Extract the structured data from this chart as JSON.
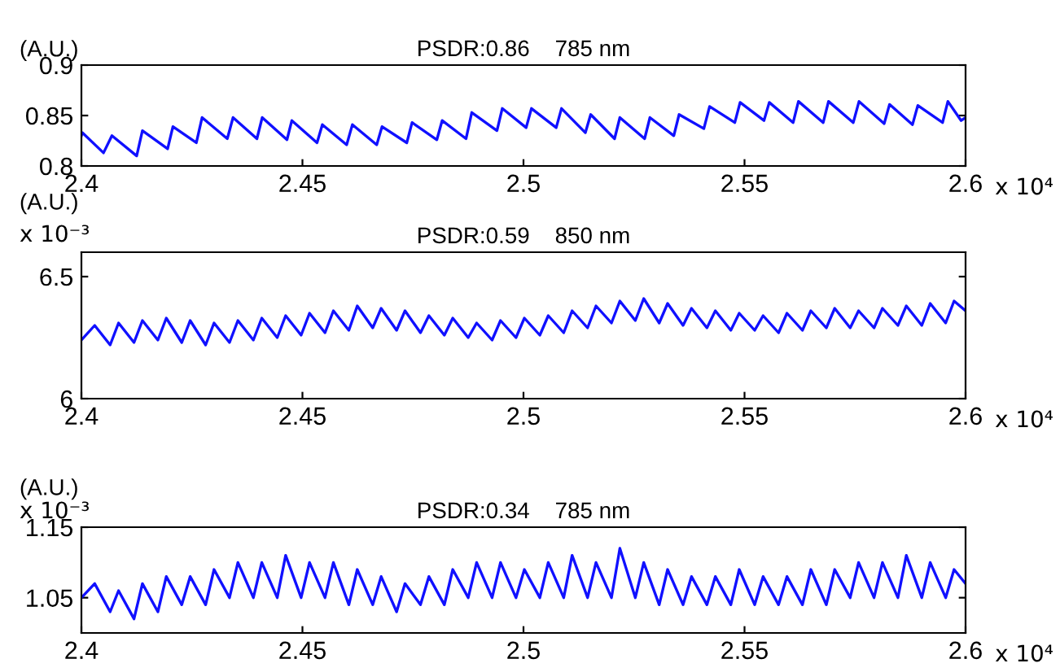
{
  "chart_data": [
    {
      "type": "line",
      "title": "PSDR:0.86    785 nm",
      "ylabel": "(A.U.)",
      "annotations": [
        "x 10⁴"
      ],
      "xlim": [
        2.4,
        2.6
      ],
      "xticks": [
        2.4,
        2.45,
        2.5,
        2.55,
        2.6
      ],
      "ylim": [
        0.8,
        0.9
      ],
      "yticks": [
        0.8,
        0.85,
        0.9
      ],
      "grid": false,
      "legend": false,
      "series": [
        {
          "color": "#1010ff",
          "x": [
            2.4,
            2.4002,
            2.405,
            2.4069,
            2.4125,
            2.4138,
            2.4195,
            2.4207,
            2.426,
            2.4273,
            2.433,
            2.4343,
            2.4397,
            2.4409,
            2.4465,
            2.4476,
            2.4533,
            2.4545,
            2.46,
            2.4613,
            2.4668,
            2.468,
            2.4736,
            2.4748,
            2.4804,
            2.4816,
            2.487,
            2.4883,
            2.494,
            2.4952,
            2.5006,
            2.5018,
            2.5074,
            2.5086,
            2.514,
            2.5152,
            2.5206,
            2.5218,
            2.5274,
            2.5286,
            2.534,
            2.5352,
            2.5408,
            2.5421,
            2.5478,
            2.549,
            2.5544,
            2.5556,
            2.561,
            2.5622,
            2.5678,
            2.569,
            2.5746,
            2.5759,
            2.5816,
            2.5828,
            2.588,
            2.5892,
            2.5948,
            2.596,
            2.599,
            2.6
          ],
          "values": [
            0.83,
            0.833,
            0.813,
            0.83,
            0.81,
            0.835,
            0.817,
            0.839,
            0.823,
            0.848,
            0.827,
            0.848,
            0.827,
            0.848,
            0.826,
            0.845,
            0.823,
            0.841,
            0.821,
            0.841,
            0.821,
            0.839,
            0.823,
            0.843,
            0.826,
            0.845,
            0.827,
            0.853,
            0.835,
            0.857,
            0.838,
            0.857,
            0.838,
            0.857,
            0.833,
            0.851,
            0.827,
            0.848,
            0.827,
            0.848,
            0.83,
            0.851,
            0.837,
            0.859,
            0.843,
            0.863,
            0.845,
            0.863,
            0.843,
            0.864,
            0.843,
            0.864,
            0.843,
            0.864,
            0.842,
            0.861,
            0.841,
            0.86,
            0.843,
            0.864,
            0.845,
            0.848
          ]
        }
      ]
    },
    {
      "type": "line",
      "title": "PSDR:0.59    850 nm",
      "ylabel": "(A.U.)",
      "annotations": [
        "x 10⁴",
        "x 10⁻³"
      ],
      "xlim": [
        2.4,
        2.6
      ],
      "xticks": [
        2.4,
        2.45,
        2.5,
        2.55,
        2.6
      ],
      "ylim": [
        6.0,
        6.6
      ],
      "yticks": [
        6,
        6.5
      ],
      "grid": false,
      "legend": false,
      "series": [
        {
          "color": "#1010ff",
          "x": [
            2.4,
            2.403,
            2.4065,
            2.4084,
            2.4119,
            2.4138,
            2.4173,
            2.4192,
            2.4227,
            2.4246,
            2.4281,
            2.43,
            2.4335,
            2.4354,
            2.4389,
            2.4408,
            2.4443,
            2.4462,
            2.4497,
            2.4516,
            2.4551,
            2.457,
            2.4605,
            2.4624,
            2.4659,
            2.4678,
            2.4713,
            2.4732,
            2.4767,
            2.4786,
            2.4821,
            2.484,
            2.4875,
            2.4894,
            2.4929,
            2.4948,
            2.4983,
            2.5002,
            2.5037,
            2.5056,
            2.5091,
            2.511,
            2.5145,
            2.5164,
            2.5199,
            2.5218,
            2.5253,
            2.5272,
            2.5307,
            2.5326,
            2.5361,
            2.538,
            2.5415,
            2.5434,
            2.5469,
            2.5488,
            2.5523,
            2.5542,
            2.5577,
            2.5596,
            2.5631,
            2.565,
            2.5685,
            2.5704,
            2.5739,
            2.5758,
            2.5793,
            2.5812,
            2.5847,
            2.5866,
            2.5901,
            2.592,
            2.5955,
            2.5974,
            2.6
          ],
          "values": [
            6.24,
            6.3,
            6.22,
            6.31,
            6.23,
            6.32,
            6.24,
            6.33,
            6.23,
            6.32,
            6.22,
            6.31,
            6.23,
            6.32,
            6.24,
            6.33,
            6.25,
            6.34,
            6.26,
            6.35,
            6.27,
            6.36,
            6.28,
            6.38,
            6.29,
            6.37,
            6.28,
            6.36,
            6.27,
            6.34,
            6.26,
            6.33,
            6.25,
            6.31,
            6.24,
            6.32,
            6.25,
            6.33,
            6.26,
            6.34,
            6.27,
            6.36,
            6.29,
            6.38,
            6.31,
            6.4,
            6.32,
            6.41,
            6.31,
            6.39,
            6.3,
            6.37,
            6.29,
            6.36,
            6.28,
            6.35,
            6.28,
            6.34,
            6.27,
            6.35,
            6.28,
            6.36,
            6.29,
            6.37,
            6.29,
            6.36,
            6.29,
            6.37,
            6.3,
            6.38,
            6.3,
            6.39,
            6.31,
            6.4,
            6.36
          ]
        }
      ]
    },
    {
      "type": "line",
      "title": "PSDR:0.34    785 nm",
      "ylabel": "(A.U.)",
      "annotations": [
        "x 10⁴",
        "x 10⁻³"
      ],
      "xlim": [
        2.4,
        2.6
      ],
      "xticks": [
        2.4,
        2.45,
        2.5,
        2.55,
        2.6
      ],
      "ylim": [
        1.0,
        1.15
      ],
      "yticks": [
        1.05,
        1.15
      ],
      "grid": false,
      "legend": false,
      "series": [
        {
          "color": "#1010ff",
          "x": [
            2.4,
            2.403,
            2.4065,
            2.4084,
            2.4119,
            2.4138,
            2.4173,
            2.4192,
            2.4227,
            2.4246,
            2.4281,
            2.43,
            2.4335,
            2.4354,
            2.4389,
            2.4408,
            2.4443,
            2.4462,
            2.4497,
            2.4516,
            2.4551,
            2.457,
            2.4605,
            2.4624,
            2.4659,
            2.4678,
            2.4713,
            2.4732,
            2.4767,
            2.4786,
            2.4821,
            2.484,
            2.4875,
            2.4894,
            2.4929,
            2.4948,
            2.4983,
            2.5002,
            2.5037,
            2.5056,
            2.5091,
            2.511,
            2.5145,
            2.5164,
            2.5199,
            2.5218,
            2.5253,
            2.5272,
            2.5307,
            2.5326,
            2.5361,
            2.538,
            2.5415,
            2.5434,
            2.5469,
            2.5488,
            2.5523,
            2.5542,
            2.5577,
            2.5596,
            2.5631,
            2.565,
            2.5685,
            2.5704,
            2.5739,
            2.5758,
            2.5793,
            2.5812,
            2.5847,
            2.5866,
            2.5901,
            2.592,
            2.5955,
            2.5974,
            2.6
          ],
          "values": [
            1.05,
            1.07,
            1.03,
            1.06,
            1.02,
            1.07,
            1.03,
            1.08,
            1.04,
            1.08,
            1.04,
            1.09,
            1.05,
            1.1,
            1.05,
            1.1,
            1.05,
            1.11,
            1.05,
            1.1,
            1.05,
            1.1,
            1.04,
            1.09,
            1.04,
            1.08,
            1.03,
            1.07,
            1.04,
            1.08,
            1.04,
            1.09,
            1.05,
            1.1,
            1.05,
            1.1,
            1.05,
            1.09,
            1.05,
            1.1,
            1.05,
            1.11,
            1.05,
            1.1,
            1.05,
            1.12,
            1.05,
            1.1,
            1.04,
            1.09,
            1.04,
            1.08,
            1.04,
            1.08,
            1.04,
            1.09,
            1.04,
            1.08,
            1.04,
            1.08,
            1.04,
            1.09,
            1.04,
            1.09,
            1.05,
            1.1,
            1.05,
            1.1,
            1.05,
            1.11,
            1.05,
            1.1,
            1.05,
            1.09,
            1.07
          ]
        }
      ]
    }
  ]
}
